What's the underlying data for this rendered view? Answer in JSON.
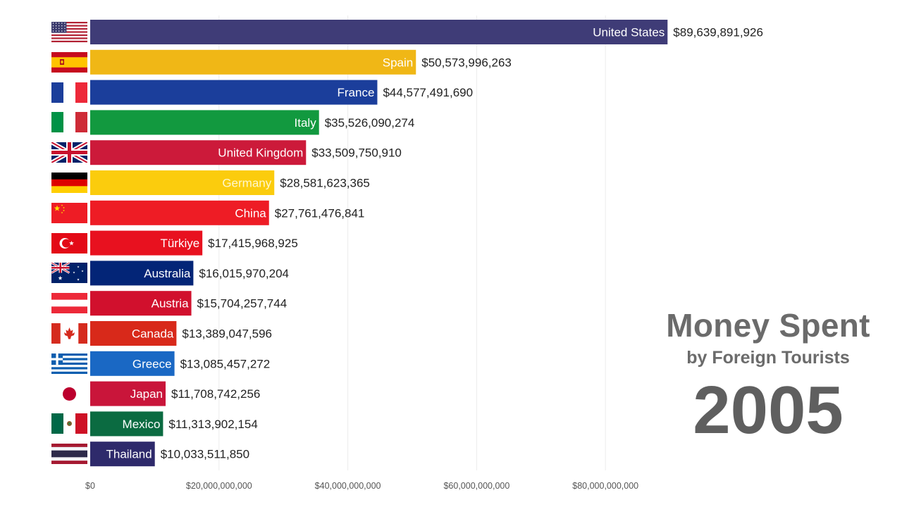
{
  "title": "Money Spent",
  "subtitle": "by Foreign Tourists",
  "year": "2005",
  "chart_data": {
    "type": "bar",
    "orientation": "horizontal",
    "title": "Money Spent",
    "subtitle": "by Foreign Tourists",
    "xlabel": "",
    "ylabel": "",
    "xlim": [
      0,
      90000000000
    ],
    "x_ticks": [
      0,
      20000000000,
      40000000000,
      60000000000,
      80000000000
    ],
    "x_tick_labels": [
      "$0",
      "$20,000,000,000",
      "$40,000,000,000",
      "$60,000,000,000",
      "$80,000,000,000"
    ],
    "grid": "vertical",
    "legend": "none",
    "categories": [
      "United States",
      "Spain",
      "France",
      "Italy",
      "United Kingdom",
      "Germany",
      "China",
      "Türkiye",
      "Australia",
      "Austria",
      "Canada",
      "Greece",
      "Japan",
      "Mexico",
      "Thailand"
    ],
    "values": [
      89639891926,
      50573996263,
      44577491690,
      35526090274,
      33509750910,
      28581623365,
      27761476841,
      17415968925,
      16015970204,
      15704257744,
      13389047596,
      13085457272,
      11708742256,
      11313902154,
      10033511850
    ],
    "value_labels": [
      "$89,639,891,926",
      "$50,573,996,263",
      "$44,577,491,690",
      "$35,526,090,274",
      "$33,509,750,910",
      "$28,581,623,365",
      "$27,761,476,841",
      "$17,415,968,925",
      "$16,015,970,204",
      "$15,704,257,744",
      "$13,389,047,596",
      "$13,085,457,272",
      "$11,708,742,256",
      "$11,313,902,154",
      "$10,033,511,850"
    ],
    "colors": [
      "#3f3c77",
      "#f0b716",
      "#1b3e9b",
      "#12993f",
      "#cc1a3a",
      "#fbcc0d",
      "#ee1c25",
      "#e8111f",
      "#032577",
      "#d1102d",
      "#d8291a",
      "#1a68c4",
      "#c9153a",
      "#0b6b41",
      "#2e2a6b"
    ],
    "label_colors": [
      "#ffffff",
      "#ffffff",
      "#ffffff",
      "#ffffff",
      "#ffffff",
      "#fff7cc",
      "#ffffff",
      "#ffffff",
      "#ffffff",
      "#ffffff",
      "#ffffff",
      "#ffffff",
      "#ffffff",
      "#ffffff",
      "#ffffff"
    ],
    "flags": [
      "us-flag-icon",
      "spain-flag-icon",
      "france-flag-icon",
      "italy-flag-icon",
      "uk-flag-icon",
      "germany-flag-icon",
      "china-flag-icon",
      "turkiye-flag-icon",
      "australia-flag-icon",
      "austria-flag-icon",
      "canada-flag-icon",
      "greece-flag-icon",
      "japan-flag-icon",
      "mexico-flag-icon",
      "thailand-flag-icon"
    ]
  }
}
